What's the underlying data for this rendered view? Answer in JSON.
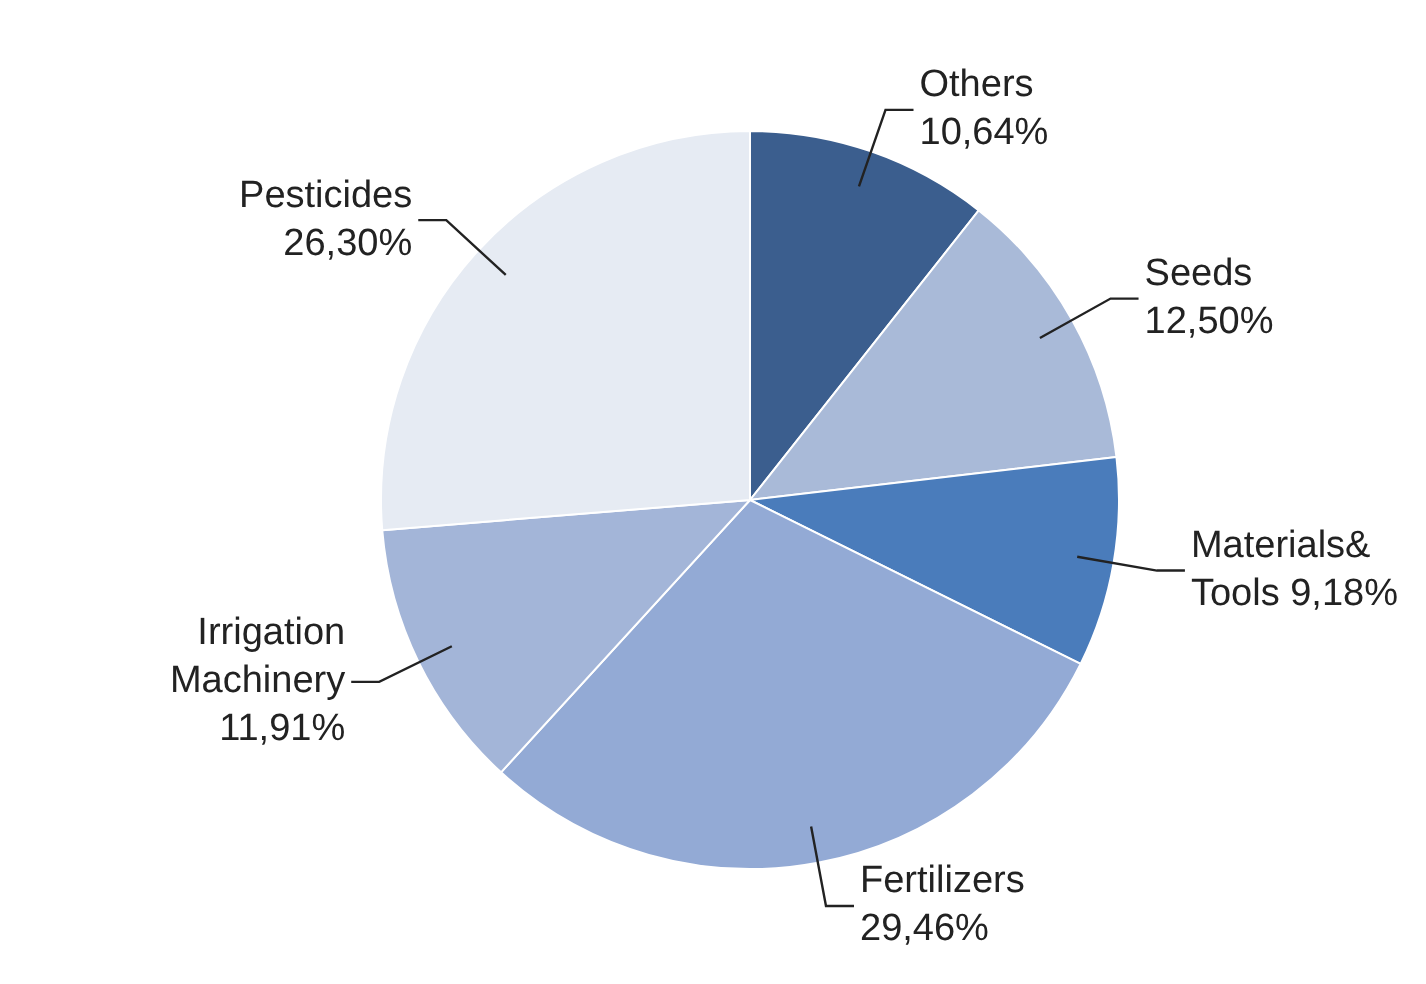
{
  "chart_data": {
    "type": "pie",
    "categories": [
      "Others",
      "Seeds",
      "Materials& Tools",
      "Fertilizers",
      "Irrigation Machinery",
      "Pesticides"
    ],
    "values": [
      10.64,
      12.5,
      9.18,
      29.46,
      11.91,
      26.3
    ],
    "value_labels": [
      "10,64%",
      "12,50%",
      "9,18%",
      "29,46%",
      "11,91%",
      "26,30%"
    ],
    "colors": [
      "#3b5e8e",
      "#a9bad8",
      "#4a7cbb",
      "#93aad5",
      "#a3b5d8",
      "#e6ebf3"
    ],
    "legend": false
  }
}
